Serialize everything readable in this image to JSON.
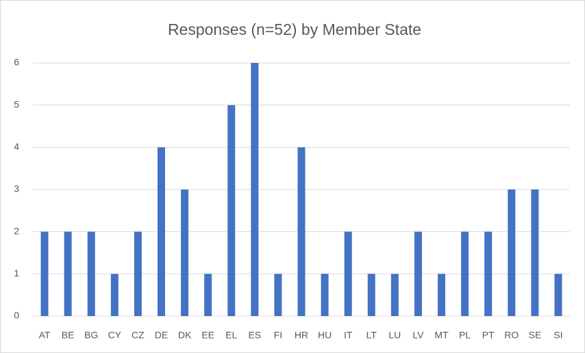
{
  "chart_data": {
    "type": "bar",
    "title": "Responses (n=52) by Member State",
    "categories": [
      "AT",
      "BE",
      "BG",
      "CY",
      "CZ",
      "DE",
      "DK",
      "EE",
      "EL",
      "ES",
      "FI",
      "HR",
      "HU",
      "IT",
      "LT",
      "LU",
      "LV",
      "MT",
      "PL",
      "PT",
      "RO",
      "SE",
      "SI"
    ],
    "values": [
      2,
      2,
      2,
      1,
      2,
      4,
      3,
      1,
      5,
      6,
      1,
      4,
      1,
      2,
      1,
      1,
      2,
      1,
      2,
      2,
      3,
      3,
      1
    ],
    "color": "#4472c4",
    "ylim": [
      0,
      6
    ],
    "yticks": [
      0,
      1,
      2,
      3,
      4,
      5,
      6
    ],
    "grid": true
  }
}
